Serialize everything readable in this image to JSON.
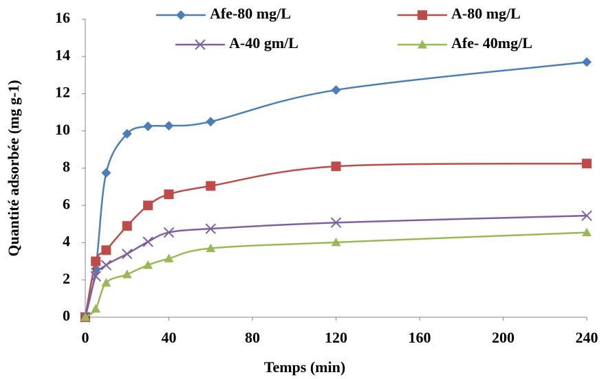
{
  "chart_data": {
    "type": "line",
    "x_label": "Temps (min)",
    "y_label": "Quantité adsorbée (mg g-1)",
    "x": [
      0,
      5,
      10,
      20,
      30,
      40,
      60,
      120,
      240
    ],
    "series": [
      {
        "name": "Afe-80 mg/L",
        "color": "#4a7ebb",
        "marker": "diamond",
        "values": [
          0,
          2.6,
          7.75,
          9.85,
          10.25,
          10.28,
          10.5,
          12.2,
          13.7
        ]
      },
      {
        "name": "A-80 mg/L",
        "color": "#be4b48",
        "marker": "square",
        "values": [
          0,
          3.0,
          3.6,
          4.9,
          6.0,
          6.6,
          7.05,
          8.1,
          8.25
        ]
      },
      {
        "name": "A-40 gm/L",
        "color": "#7d5fa0",
        "marker": "x",
        "values": [
          0,
          2.2,
          2.8,
          3.4,
          4.05,
          4.55,
          4.75,
          5.08,
          5.45
        ]
      },
      {
        "name": "Afe- 40mg/L",
        "color": "#98b954",
        "marker": "triangle",
        "values": [
          0,
          0.45,
          1.85,
          2.3,
          2.8,
          3.15,
          3.7,
          4.02,
          4.55
        ]
      }
    ],
    "xlim": [
      0,
      240
    ],
    "xticks": [
      0,
      40,
      80,
      120,
      160,
      200,
      240
    ],
    "ylim": [
      0,
      16
    ],
    "yticks": [
      0,
      2,
      4,
      6,
      8,
      10,
      12,
      14,
      16
    ],
    "grid": false,
    "legend": "top"
  }
}
